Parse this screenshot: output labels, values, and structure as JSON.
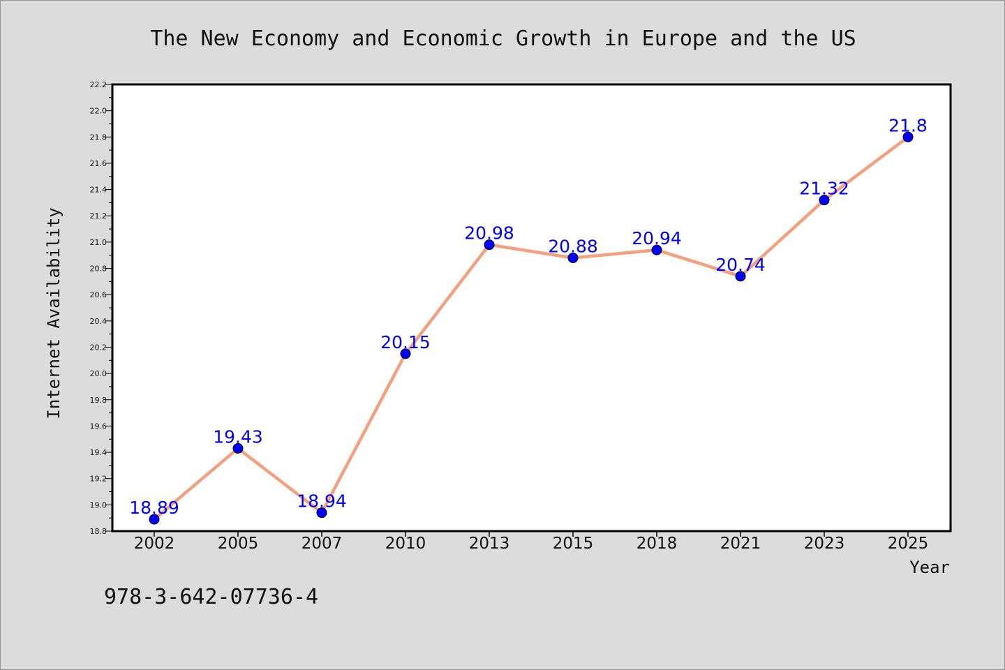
{
  "chart_data": {
    "type": "line",
    "title": "The New Economy and Economic Growth in Europe and the US",
    "xlabel": "Year",
    "ylabel": "Internet Availability",
    "categories": [
      "2002",
      "2005",
      "2007",
      "2010",
      "2013",
      "2015",
      "2018",
      "2021",
      "2023",
      "2025"
    ],
    "series": [
      {
        "values": [
          18.89,
          19.43,
          18.94,
          20.15,
          20.98,
          20.88,
          20.94,
          20.74,
          21.32,
          21.8
        ],
        "data_labels": [
          "18.89",
          "19.43",
          "18.94",
          "20.15",
          "20.98",
          "20.88",
          "20.94",
          "20.74",
          "21.32",
          "21.8"
        ],
        "line_color": "#f4a07e",
        "marker_color": "#0000ff"
      }
    ],
    "ylim": [
      18.8,
      22.2
    ],
    "yticks": [
      "18.8",
      "19.0",
      "19.2",
      "19.4",
      "19.6",
      "19.8",
      "20.0",
      "20.2",
      "20.4",
      "20.6",
      "20.8",
      "21.0",
      "21.2",
      "21.4",
      "21.6",
      "21.8",
      "22.0",
      "22.2"
    ],
    "grid": false,
    "legend": "none"
  },
  "footer": {
    "code": "978-3-642-07736-4"
  },
  "colors": {
    "background": "#dcdcdc",
    "plot_area": "#ffffff",
    "label_color": "#0000ff"
  }
}
